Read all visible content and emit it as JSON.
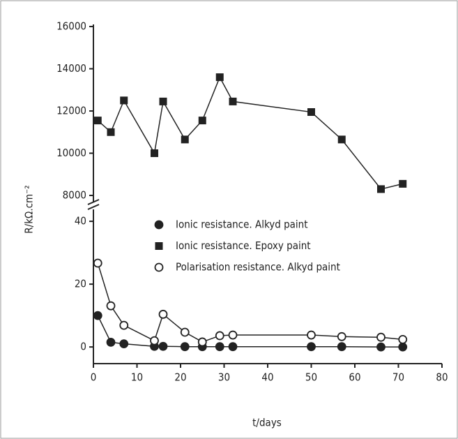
{
  "chart_data": {
    "type": "line",
    "x_label": "t/days",
    "y_label": "R/kΩ.cm⁻²",
    "x": [
      1,
      4,
      7,
      14,
      16,
      21,
      25,
      29,
      32,
      50,
      57,
      66,
      71
    ],
    "series": [
      {
        "name": "Ionic resistance. Alkyd paint",
        "color": "#222222",
        "marker": "circle-filled",
        "values": [
          10,
          1.5,
          1,
          0.2,
          0.2,
          0.1,
          0.1,
          0.1,
          0.1,
          0.1,
          0.1,
          0,
          0
        ]
      },
      {
        "name": "Ionic resistance. Epoxy paint",
        "color": "#222222",
        "marker": "square",
        "axis": "y2",
        "values": [
          11550,
          11000,
          12500,
          10000,
          12450,
          10650,
          11550,
          13600,
          12450,
          11950,
          10650,
          8300,
          8550
        ]
      },
      {
        "name": "Polarisation resistance. Alkyd paint",
        "color": "#222222",
        "marker": "circle-open",
        "values": [
          26.7,
          13.1,
          6.9,
          2,
          10.4,
          4.7,
          1.6,
          3.6,
          3.8,
          3.8,
          3.3,
          3.1,
          2.4
        ]
      }
    ],
    "xlim": [
      0,
      80
    ],
    "xticks": [
      0,
      10,
      20,
      30,
      40,
      50,
      60,
      70,
      80
    ],
    "ylim": [
      -5.3,
      43.8
    ],
    "yticks": [
      0,
      20,
      40
    ],
    "y2lim": [
      7670,
      16100
    ],
    "y2ticks": [
      8000,
      10000,
      12000,
      14000,
      16000
    ],
    "legend": "top-center",
    "axis_break": true
  }
}
